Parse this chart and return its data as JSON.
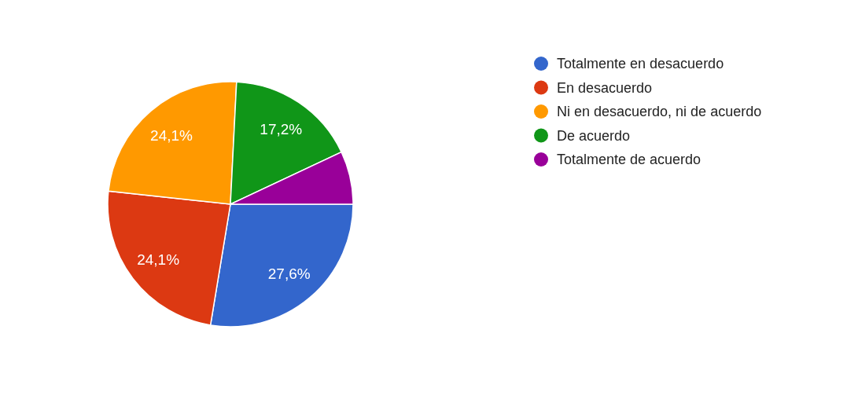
{
  "chart_data": {
    "type": "pie",
    "categories": [
      "Totalmente en desacuerdo",
      "En desacuerdo",
      "Ni en desacuerdo, ni de acuerdo",
      "De acuerdo",
      "Totalmente de acuerdo"
    ],
    "values": [
      27.6,
      24.1,
      24.1,
      17.2,
      7.0
    ],
    "colors": [
      "#3366cc",
      "#dc3912",
      "#ff9900",
      "#109618",
      "#990099"
    ],
    "value_labels": [
      "27,6%",
      "24,1%",
      "24,1%",
      "17,2%",
      null
    ],
    "legend": "right"
  }
}
